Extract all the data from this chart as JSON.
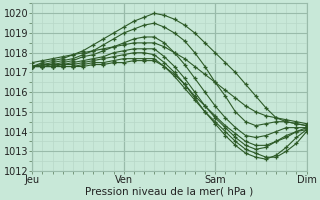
{
  "bg_color": "#c8e8d8",
  "grid_major_color": "#99bbaa",
  "grid_minor_color": "#b8d8c8",
  "line_color": "#2d5a27",
  "xlabel": "Pression niveau de la mer( hPa )",
  "ylim": [
    1012,
    1020.5
  ],
  "yticks": [
    1012,
    1013,
    1014,
    1015,
    1016,
    1017,
    1018,
    1019,
    1020
  ],
  "xtick_labels": [
    "Jeu",
    "Ven",
    "Sam",
    "Dim"
  ],
  "xtick_positions": [
    0,
    9,
    18,
    27
  ],
  "xlim": [
    0,
    27
  ],
  "lines": [
    [
      1017.3,
      1017.5,
      1017.6,
      1017.7,
      1017.9,
      1018.1,
      1018.4,
      1018.7,
      1019.0,
      1019.3,
      1019.6,
      1019.8,
      1020.0,
      1019.9,
      1019.7,
      1019.4,
      1019.0,
      1018.5,
      1018.0,
      1017.5,
      1017.0,
      1016.4,
      1015.8,
      1015.2,
      1014.7,
      1014.5,
      1014.4,
      1014.3
    ],
    [
      1017.3,
      1017.4,
      1017.5,
      1017.6,
      1017.7,
      1017.9,
      1018.1,
      1018.4,
      1018.7,
      1019.0,
      1019.2,
      1019.4,
      1019.5,
      1019.3,
      1019.0,
      1018.6,
      1018.0,
      1017.3,
      1016.5,
      1015.8,
      1015.0,
      1014.5,
      1014.3,
      1014.4,
      1014.5,
      1014.5,
      1014.4,
      1014.3
    ],
    [
      1017.3,
      1017.4,
      1017.4,
      1017.5,
      1017.6,
      1017.8,
      1017.9,
      1018.1,
      1018.3,
      1018.5,
      1018.7,
      1018.8,
      1018.8,
      1018.5,
      1018.0,
      1017.4,
      1016.7,
      1016.0,
      1015.3,
      1014.7,
      1014.2,
      1013.8,
      1013.7,
      1013.8,
      1014.0,
      1014.2,
      1014.2,
      1014.2
    ],
    [
      1017.3,
      1017.3,
      1017.4,
      1017.4,
      1017.5,
      1017.6,
      1017.7,
      1017.8,
      1018.0,
      1018.1,
      1018.2,
      1018.2,
      1018.2,
      1017.8,
      1017.3,
      1016.7,
      1016.0,
      1015.3,
      1014.7,
      1014.2,
      1013.7,
      1013.3,
      1013.1,
      1013.2,
      1013.5,
      1013.8,
      1014.0,
      1014.1
    ],
    [
      1017.3,
      1017.3,
      1017.3,
      1017.4,
      1017.4,
      1017.5,
      1017.6,
      1017.7,
      1017.8,
      1017.9,
      1018.0,
      1018.0,
      1017.9,
      1017.5,
      1017.0,
      1016.4,
      1015.7,
      1015.0,
      1014.4,
      1013.8,
      1013.3,
      1012.9,
      1012.7,
      1012.6,
      1012.8,
      1013.2,
      1013.7,
      1014.1
    ],
    [
      1017.3,
      1017.3,
      1017.3,
      1017.3,
      1017.3,
      1017.4,
      1017.5,
      1017.5,
      1017.6,
      1017.7,
      1017.7,
      1017.7,
      1017.7,
      1017.3,
      1016.8,
      1016.2,
      1015.6,
      1015.0,
      1014.5,
      1014.0,
      1013.5,
      1013.1,
      1012.9,
      1012.7,
      1012.7,
      1013.0,
      1013.4,
      1014.0
    ],
    [
      1017.3,
      1017.3,
      1017.3,
      1017.3,
      1017.3,
      1017.3,
      1017.4,
      1017.4,
      1017.5,
      1017.5,
      1017.6,
      1017.6,
      1017.6,
      1017.3,
      1016.9,
      1016.4,
      1015.8,
      1015.3,
      1014.8,
      1014.3,
      1013.9,
      1013.5,
      1013.3,
      1013.3,
      1013.5,
      1013.7,
      1014.0,
      1014.2
    ],
    [
      1017.5,
      1017.6,
      1017.7,
      1017.8,
      1017.9,
      1018.0,
      1018.1,
      1018.2,
      1018.3,
      1018.4,
      1018.5,
      1018.5,
      1018.5,
      1018.3,
      1018.0,
      1017.7,
      1017.3,
      1016.9,
      1016.5,
      1016.1,
      1015.7,
      1015.3,
      1015.0,
      1014.8,
      1014.7,
      1014.6,
      1014.5,
      1014.4
    ]
  ]
}
